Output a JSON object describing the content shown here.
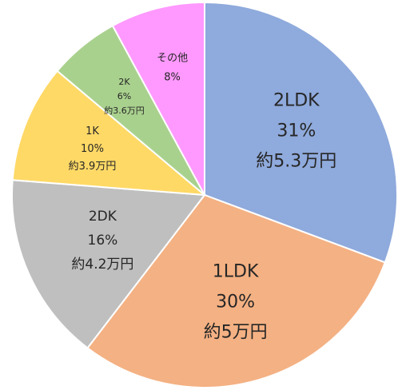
{
  "chart_data": {
    "type": "pie",
    "start_angle_deg": 0,
    "direction": "clockwise",
    "legend": "none",
    "slices": [
      {
        "name": "2LDK",
        "value": 31,
        "percent_label": "31%",
        "rent_label": "約5.3万円",
        "color": "#8faadc"
      },
      {
        "name": "1LDK",
        "value": 30,
        "percent_label": "30%",
        "rent_label": "約5万円",
        "color": "#f4b183"
      },
      {
        "name": "2DK",
        "value": 16,
        "percent_label": "16%",
        "rent_label": "約4.2万円",
        "color": "#bfbfbf"
      },
      {
        "name": "1K",
        "value": 10,
        "percent_label": "10%",
        "rent_label": "約3.9万円",
        "color": "#ffd966"
      },
      {
        "name": "2K",
        "value": 6,
        "percent_label": "6%",
        "rent_label": "約3.6万円",
        "color": "#a9d18e"
      },
      {
        "name": "その他",
        "value": 8,
        "percent_label": "8%",
        "rent_label": "",
        "color": "#ff99ff"
      }
    ]
  }
}
